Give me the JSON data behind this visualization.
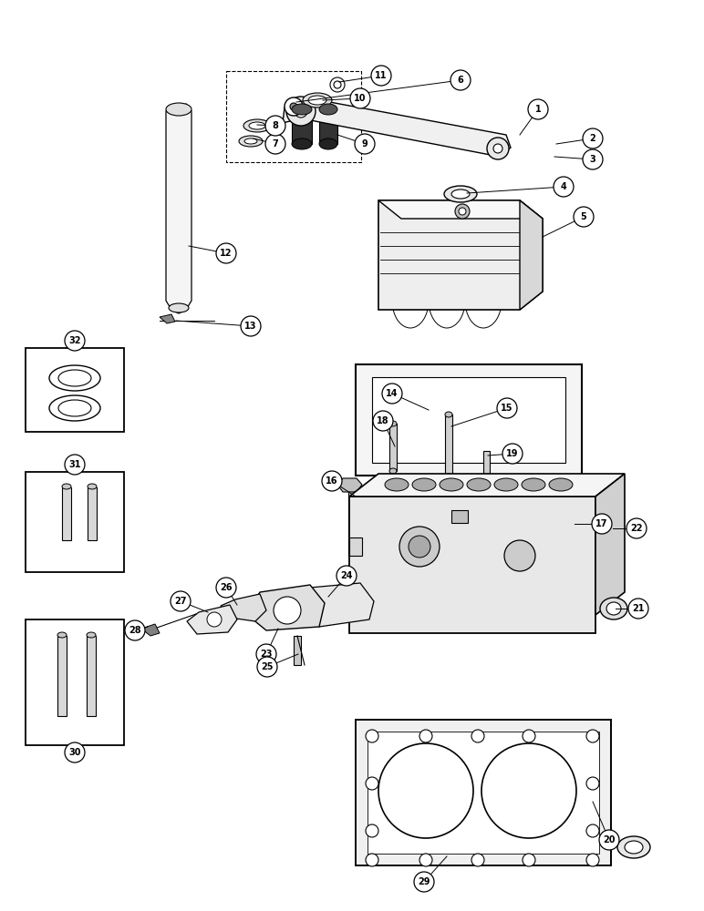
{
  "background_color": "#ffffff",
  "line_color": "#000000",
  "figsize": [
    7.72,
    10.0
  ],
  "dpi": 100
}
